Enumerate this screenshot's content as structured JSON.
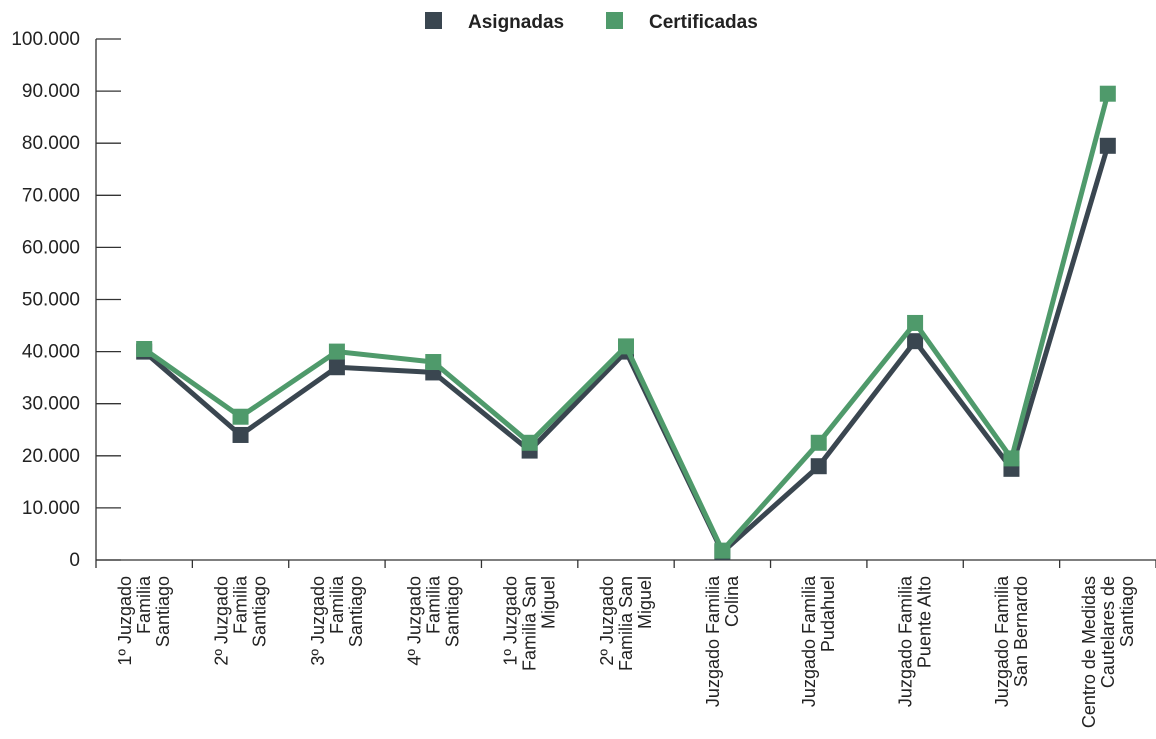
{
  "chart_data": {
    "type": "line",
    "categories": [
      [
        "1º Juzgado",
        "Familia",
        "Santiago"
      ],
      [
        "2º Juzgado",
        "Familia",
        "Santiago"
      ],
      [
        "3º Juzgado",
        "Familia",
        "Santiago"
      ],
      [
        "4º Juzgado",
        "Familia",
        "Santiago"
      ],
      [
        "1º Juzgado",
        "Familia San",
        "Miguel"
      ],
      [
        "2º Juzgado",
        "Familia San",
        "Miguel"
      ],
      [
        "Juzgado Familia",
        "Colina"
      ],
      [
        "Juzgado Familia",
        "Pudahuel"
      ],
      [
        "Juzgado Familia",
        "Puente Alto"
      ],
      [
        "Juzgado Familia",
        "San Bernardo"
      ],
      [
        "Centro de Medidas",
        "Cautelares de",
        "Santiago"
      ]
    ],
    "series": [
      {
        "name": "Asignadas",
        "color": "#3a4650",
        "values": [
          40000,
          24000,
          37000,
          36000,
          21000,
          40000,
          1500,
          18000,
          42000,
          17500,
          79500
        ]
      },
      {
        "name": "Certificadas",
        "color": "#4f9a6b",
        "values": [
          40500,
          27500,
          40000,
          38000,
          22500,
          41000,
          1800,
          22500,
          45500,
          19500,
          89500
        ]
      }
    ],
    "yticks": [
      "0",
      "10.000",
      "20.000",
      "30.000",
      "40.000",
      "50.000",
      "60.000",
      "70.000",
      "80.000",
      "90.000",
      "100.000"
    ],
    "ylim": [
      0,
      100000
    ],
    "legend_position": "top-center",
    "grid": false
  }
}
